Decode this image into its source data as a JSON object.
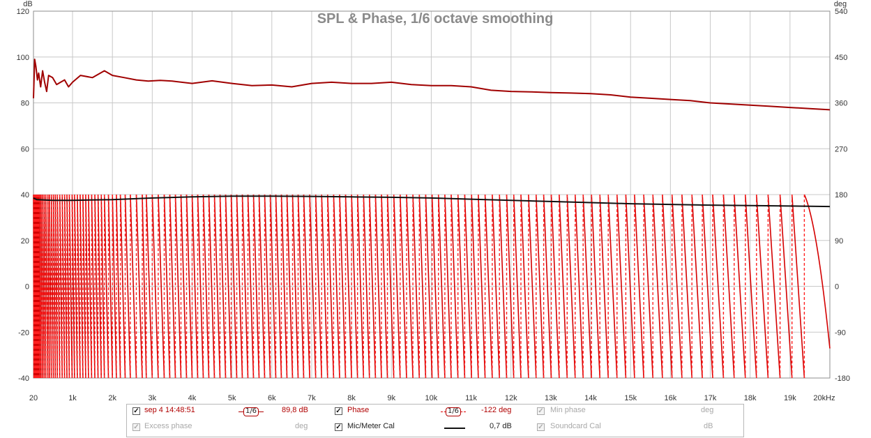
{
  "chart_data": {
    "type": "line",
    "title": "SPL & Phase, 1/6 octave smoothing",
    "left_axis": {
      "unit": "dB",
      "ticks": [
        120,
        100,
        80,
        60,
        40,
        20,
        0,
        -20,
        -40
      ],
      "range": [
        -40,
        120
      ]
    },
    "right_axis": {
      "unit": "deg",
      "ticks": [
        540,
        450,
        360,
        270,
        180,
        90,
        0,
        -90,
        -180
      ],
      "range": [
        -180,
        540
      ]
    },
    "x_axis": {
      "scale": "linear",
      "range": [
        20,
        20000
      ],
      "ticks": [
        {
          "value": 20,
          "label": "20"
        },
        {
          "value": 1000,
          "label": "1k"
        },
        {
          "value": 2000,
          "label": "2k"
        },
        {
          "value": 3000,
          "label": "3k"
        },
        {
          "value": 4000,
          "label": "4k"
        },
        {
          "value": 5000,
          "label": "5k"
        },
        {
          "value": 6000,
          "label": "6k"
        },
        {
          "value": 7000,
          "label": "7k"
        },
        {
          "value": 8000,
          "label": "8k"
        },
        {
          "value": 9000,
          "label": "9k"
        },
        {
          "value": 10000,
          "label": "10k"
        },
        {
          "value": 11000,
          "label": "11k"
        },
        {
          "value": 12000,
          "label": "12k"
        },
        {
          "value": 13000,
          "label": "13k"
        },
        {
          "value": 14000,
          "label": "14k"
        },
        {
          "value": 15000,
          "label": "15k"
        },
        {
          "value": 16000,
          "label": "16k"
        },
        {
          "value": 17000,
          "label": "17k"
        },
        {
          "value": 18000,
          "label": "18k"
        },
        {
          "value": 19000,
          "label": "19k"
        },
        {
          "value": 20000,
          "label": "20kHz"
        }
      ]
    },
    "grid": true,
    "series": [
      {
        "name": "sep 4 14:48:51",
        "axis": "left",
        "color": "#a00000",
        "x": [
          20,
          50,
          80,
          120,
          150,
          200,
          250,
          300,
          350,
          400,
          500,
          600,
          700,
          800,
          900,
          1000,
          1200,
          1500,
          1800,
          2000,
          2300,
          2600,
          2900,
          3200,
          3500,
          4000,
          4500,
          5000,
          5500,
          6000,
          6500,
          7000,
          7500,
          8000,
          8500,
          9000,
          9500,
          10000,
          10500,
          11000,
          11500,
          12000,
          12500,
          13000,
          13500,
          14000,
          14500,
          15000,
          15500,
          16000,
          16500,
          17000,
          17500,
          18000,
          18500,
          19000,
          19500,
          20000
        ],
        "values": [
          82,
          99,
          96,
          90,
          93,
          87,
          94,
          89,
          85,
          92,
          91,
          88,
          89,
          90,
          87,
          89,
          92,
          91,
          94,
          92,
          91,
          90,
          89.5,
          89.8,
          89.5,
          88.5,
          89.6,
          88.5,
          87.5,
          87.8,
          87,
          88.5,
          89,
          88.5,
          88.5,
          89,
          88,
          87.5,
          87.5,
          87,
          85.5,
          85,
          84.8,
          84.5,
          84.3,
          84,
          83.5,
          82.5,
          82,
          81.5,
          81,
          80,
          79.5,
          79,
          78.5,
          78,
          77.5,
          77
        ]
      },
      {
        "name": "Mic/Meter Cal",
        "axis": "left",
        "color": "#111111",
        "x": [
          20,
          100,
          500,
          1000,
          2000,
          3000,
          4000,
          5000,
          6000,
          7000,
          8000,
          9000,
          10000,
          11000,
          12000,
          13000,
          14000,
          15000,
          16000,
          17000,
          18000,
          19000,
          20000
        ],
        "values": [
          38.5,
          37.8,
          37.5,
          37.5,
          37.8,
          38.5,
          39,
          39.3,
          39.3,
          39.2,
          39,
          38.8,
          38.5,
          38,
          37.5,
          37,
          36.5,
          36,
          35.7,
          35.4,
          35.2,
          35,
          34.8
        ]
      },
      {
        "name": "Phase",
        "axis": "right",
        "color": "#e00000",
        "wrap_range_deg": [
          -180,
          180
        ],
        "wrap_frequencies": [
          30,
          45,
          60,
          80,
          100,
          125,
          150,
          180,
          210,
          250,
          290,
          330,
          380,
          420,
          470,
          520,
          570,
          620,
          680,
          740,
          800,
          860,
          920,
          990,
          1050,
          1120,
          1190,
          1260,
          1330,
          1400,
          1480,
          1560,
          1640,
          1720,
          1800,
          1900,
          2000,
          2100,
          2200,
          2320,
          2450,
          2600,
          2750,
          2850,
          3000,
          3150,
          3300,
          3440,
          3580,
          3720,
          3860,
          4000,
          4140,
          4280,
          4420,
          4560,
          4700,
          4840,
          4980,
          5120,
          5260,
          5400,
          5540,
          5680,
          5820,
          5960,
          6100,
          6240,
          6380,
          6520,
          6660,
          6800,
          6950,
          7100,
          7250,
          7400,
          7550,
          7700,
          7850,
          8000,
          8150,
          8300,
          8450,
          8600,
          8750,
          8900,
          9060,
          9220,
          9380,
          9540,
          9700,
          9860,
          10020,
          10180,
          10340,
          10500,
          10670,
          10840,
          11010,
          11180,
          11350,
          11530,
          11710,
          11890,
          12070,
          12250,
          12440,
          12630,
          12820,
          13010,
          13210,
          13410,
          13610,
          13810,
          14020,
          14230,
          14440,
          14660,
          14880,
          15100,
          15330,
          15560,
          15800,
          16040,
          16290,
          16540,
          16800,
          17060,
          17330,
          17600,
          17880,
          18160,
          18450,
          18750,
          19050,
          19360
        ],
        "end_value_deg": -122
      }
    ]
  },
  "legend": {
    "row1": {
      "measurement": {
        "label": "sep 4 14:48:51",
        "smoothing": "1/6",
        "value": "89,8 dB"
      },
      "phase": {
        "label": "Phase",
        "smoothing": "1/6",
        "value": "-122 deg"
      },
      "min_phase": {
        "label": "Min phase",
        "value": "deg"
      }
    },
    "row2": {
      "excess_phase": {
        "label": "Excess phase",
        "value": "deg"
      },
      "mic_cal": {
        "label": "Mic/Meter Cal",
        "value": "0,7 dB"
      },
      "soundcard_cal": {
        "label": "Soundcard Cal",
        "value": "dB"
      }
    },
    "check_mark": "✓"
  }
}
